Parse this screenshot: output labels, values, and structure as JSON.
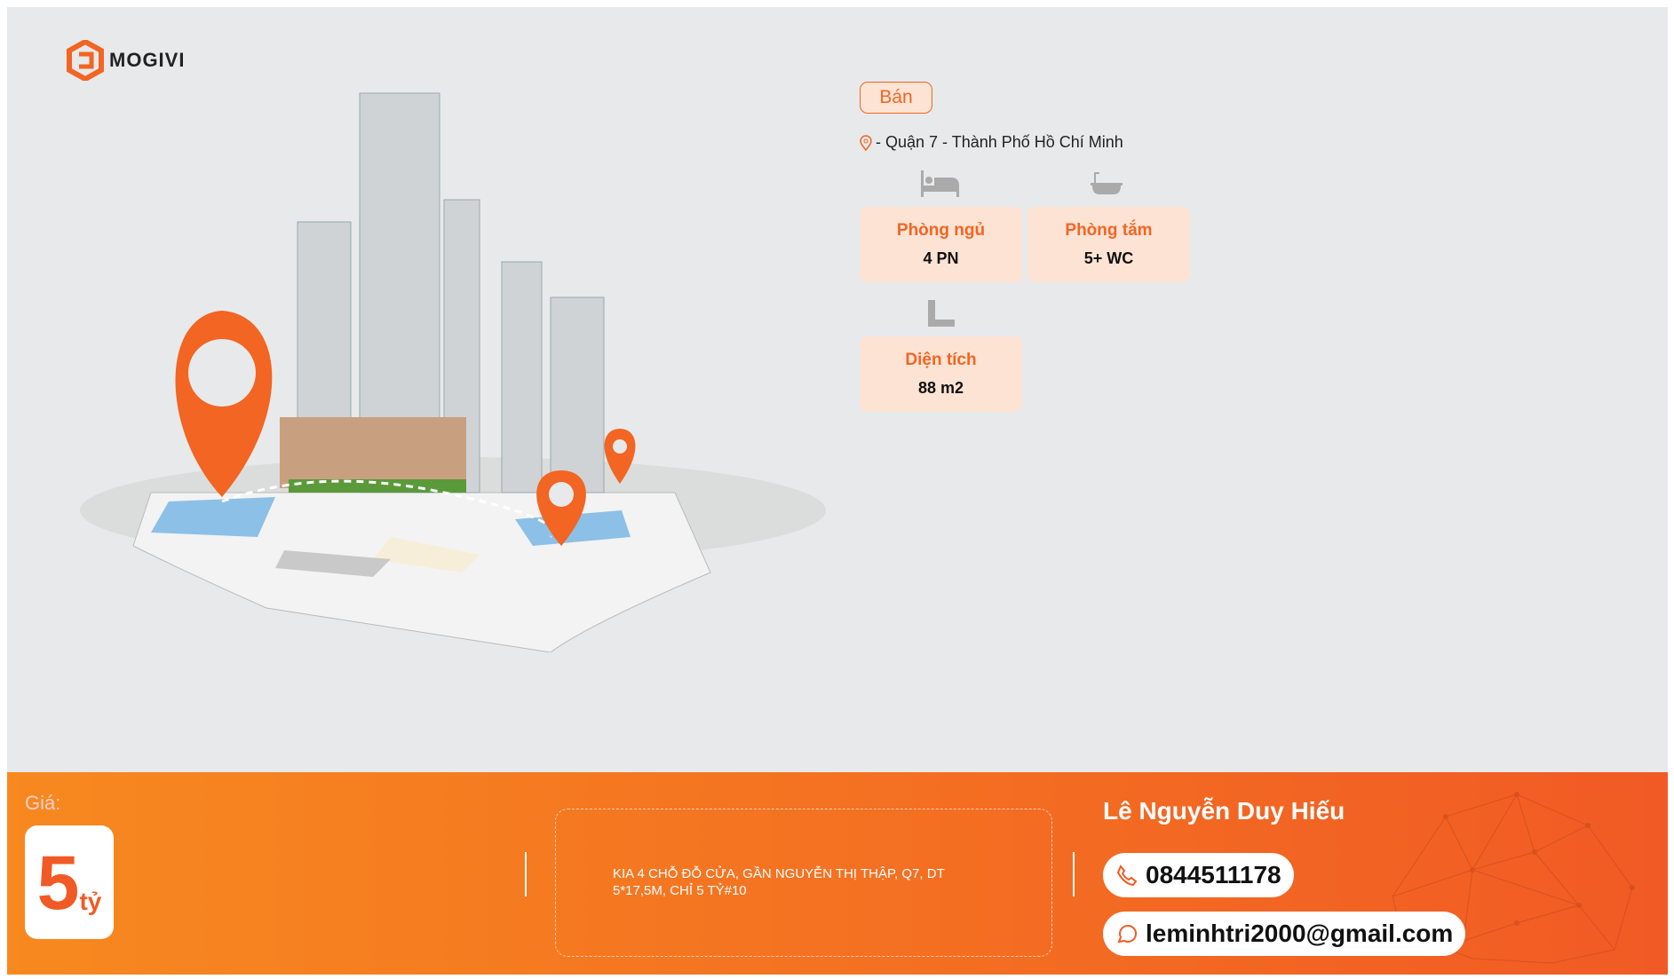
{
  "brand": {
    "name": "MOGIVI",
    "color": "#f26522"
  },
  "listing": {
    "type_badge": "Bán",
    "location": "- Quận 7 - Thành Phố Hồ Chí Minh",
    "features": [
      {
        "icon": "bed-icon",
        "label": "Phòng ngủ",
        "value": "4 PN"
      },
      {
        "icon": "bathtub-icon",
        "label": "Phòng tắm",
        "value": "5+ WC"
      },
      {
        "icon": "ruler-icon",
        "label": "Diện tích",
        "value": "88 m2"
      }
    ]
  },
  "footer": {
    "price_label": "Giá:",
    "price_value": "5",
    "price_unit": "tỷ",
    "description": "KIA 4 CHỖ ĐỖ CỬA, GẦN NGUYỄN THỊ THẬP, Q7, DT 5*17,5M, CHỈ 5 TỶ#10",
    "agent_name": "Lê Nguyễn Duy Hiếu",
    "phone": "0844511178",
    "email": "leminhtri2000@gmail.com"
  }
}
